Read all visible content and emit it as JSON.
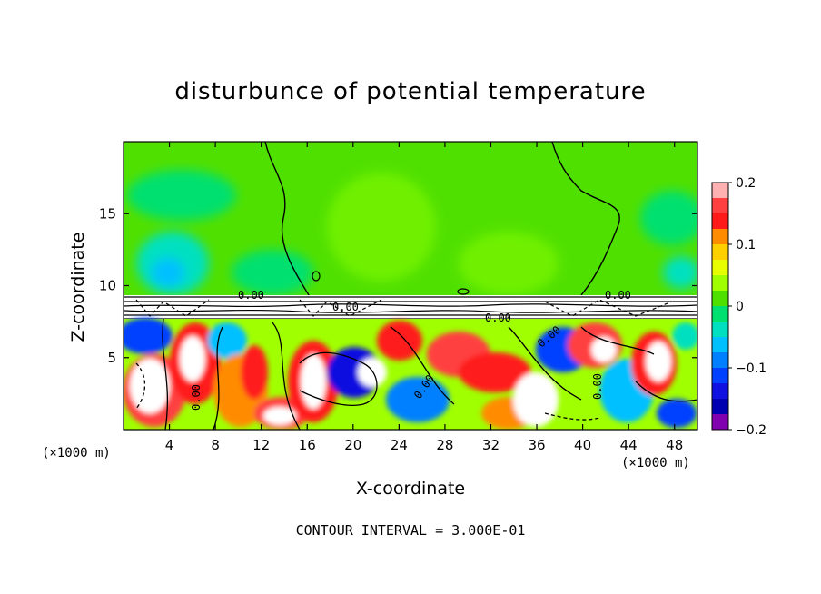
{
  "chart_data": {
    "type": "heatmap",
    "title": "disturbunce of potential temperature",
    "xlabel": "X-coordinate",
    "ylabel": "Z-coordinate",
    "x_unit": "(×1000 m)",
    "xlim": [
      0,
      50
    ],
    "ylim": [
      0,
      20
    ],
    "x_ticks": [
      4,
      8,
      12,
      16,
      20,
      24,
      28,
      32,
      36,
      40,
      44,
      48
    ],
    "y_ticks": [
      5,
      10,
      15
    ],
    "colorbar": {
      "min": -0.2,
      "max": 0.2,
      "ticks": [
        "0.2",
        "0.1",
        "0",
        "−0.1",
        "−0.2"
      ],
      "tick_values": [
        0.2,
        0.1,
        0,
        -0.1,
        -0.2
      ],
      "colors": [
        "#ffb0b0",
        "#ff4040",
        "#ff1a1a",
        "#ff8c00",
        "#ffd000",
        "#e8ff00",
        "#a0ff00",
        "#50e000",
        "#00e070",
        "#00e0c0",
        "#00c0ff",
        "#0080ff",
        "#0040ff",
        "#1010e0",
        "#0000b0",
        "#8000b0"
      ]
    },
    "contour_labels": [
      "0.00",
      "0.00",
      "0.00",
      "0.00",
      "0.00",
      "0.00",
      "0.00",
      "0.00"
    ],
    "contour_interval_text": "CONTOUR INTERVAL = 3.000E-01"
  }
}
